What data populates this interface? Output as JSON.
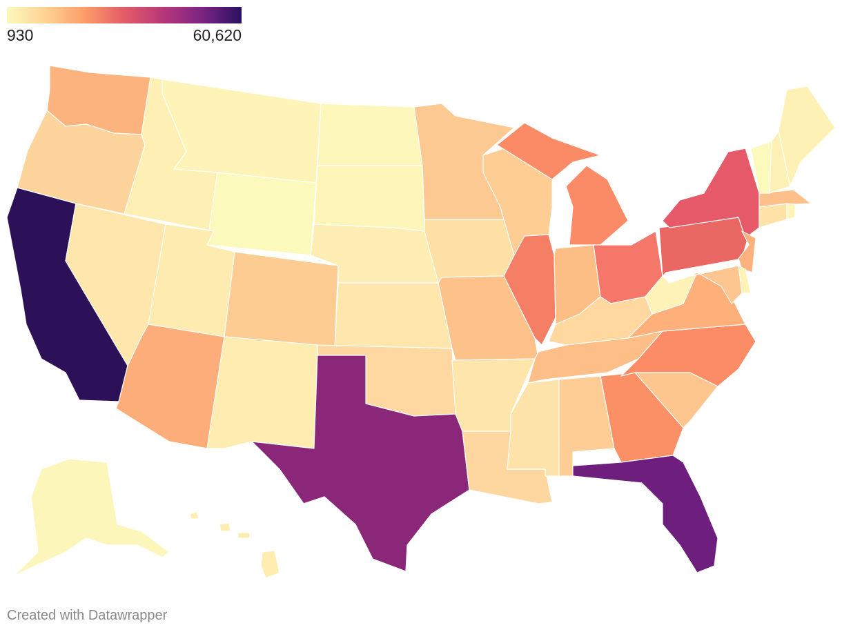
{
  "legend": {
    "min_label": "930",
    "max_label": "60,620",
    "min_value": 930,
    "max_value": 60620,
    "gradient_colors": [
      "#fcf9bd",
      "#fdd293",
      "#fc9b68",
      "#e35c67",
      "#b73779",
      "#7b2482",
      "#2b1160"
    ]
  },
  "credit": "Created with Datawrapper",
  "map": {
    "type": "choropleth",
    "region": "United States",
    "color_scale_note_levels": {
      "lowest": "#fcf9bd",
      "low": "#feeaac",
      "low_mid": "#fdca8e",
      "mid": "#fcb07a",
      "mid_high": "#fa8a66",
      "high": "#e9655f",
      "very_high": "#8b2778",
      "highest": "#2d1158"
    },
    "states": [
      {
        "name": "California",
        "color": "#2d1158"
      },
      {
        "name": "Texas",
        "color": "#8b2778"
      },
      {
        "name": "Florida",
        "color": "#6e1e7c"
      },
      {
        "name": "New York",
        "color": "#e55968"
      },
      {
        "name": "Pennsylvania",
        "color": "#ea6863"
      },
      {
        "name": "Illinois",
        "color": "#f57f65"
      },
      {
        "name": "Ohio",
        "color": "#f5776a"
      },
      {
        "name": "Michigan",
        "color": "#fb8b67"
      },
      {
        "name": "Georgia",
        "color": "#fb8f66"
      },
      {
        "name": "North Carolina",
        "color": "#fb8c66"
      },
      {
        "name": "Washington",
        "color": "#fdb37e"
      },
      {
        "name": "Arizona",
        "color": "#fdad79"
      },
      {
        "name": "Virginia",
        "color": "#fdb07a"
      },
      {
        "name": "New Jersey",
        "color": "#fdb17c"
      },
      {
        "name": "Massachusetts",
        "color": "#fdc08a"
      },
      {
        "name": "Tennessee",
        "color": "#fdbf87"
      },
      {
        "name": "Indiana",
        "color": "#fdbe86"
      },
      {
        "name": "Missouri",
        "color": "#fdc18a"
      },
      {
        "name": "Maryland",
        "color": "#fdc590"
      },
      {
        "name": "Wisconsin",
        "color": "#fdcd93"
      },
      {
        "name": "Colorado",
        "color": "#fdcc92"
      },
      {
        "name": "Minnesota",
        "color": "#fdc992"
      },
      {
        "name": "South Carolina",
        "color": "#fdc68e"
      },
      {
        "name": "Alabama",
        "color": "#fdcd95"
      },
      {
        "name": "Louisiana",
        "color": "#fed7a0"
      },
      {
        "name": "Kentucky",
        "color": "#fed89e"
      },
      {
        "name": "Oregon",
        "color": "#fdd59c"
      },
      {
        "name": "Oklahoma",
        "color": "#fed8a0"
      },
      {
        "name": "Connecticut",
        "color": "#fee2a8"
      },
      {
        "name": "Iowa",
        "color": "#fee0a5"
      },
      {
        "name": "Mississippi",
        "color": "#fee4aa"
      },
      {
        "name": "Arkansas",
        "color": "#fee5ac"
      },
      {
        "name": "Utah",
        "color": "#feebb0"
      },
      {
        "name": "Kansas",
        "color": "#fee6ad"
      },
      {
        "name": "Nevada",
        "color": "#fee6ac"
      },
      {
        "name": "New Mexico",
        "color": "#feecb1"
      },
      {
        "name": "Nebraska",
        "color": "#feeeb3"
      },
      {
        "name": "West Virginia",
        "color": "#fef2b6"
      },
      {
        "name": "Idaho",
        "color": "#fef0b4"
      },
      {
        "name": "Hawaii",
        "color": "#feecb1"
      },
      {
        "name": "New Hampshire",
        "color": "#fef1b5"
      },
      {
        "name": "Maine",
        "color": "#fef1b5"
      },
      {
        "name": "Montana",
        "color": "#fef4b8"
      },
      {
        "name": "Rhode Island",
        "color": "#fef4b8"
      },
      {
        "name": "Delaware",
        "color": "#fef3b7"
      },
      {
        "name": "South Dakota",
        "color": "#fef5b9"
      },
      {
        "name": "North Dakota",
        "color": "#fdf7bb"
      },
      {
        "name": "Alaska",
        "color": "#fdf6ba"
      },
      {
        "name": "Vermont",
        "color": "#fcf9bd"
      },
      {
        "name": "Wyoming",
        "color": "#fcf9bd"
      }
    ]
  }
}
